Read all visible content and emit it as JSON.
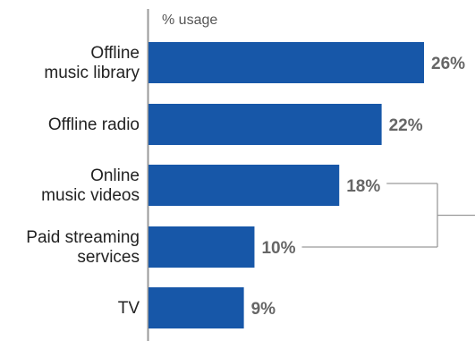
{
  "chart_data": {
    "type": "bar",
    "orientation": "horizontal",
    "unit_label": "% usage",
    "categories": [
      [
        "Offline",
        "music library"
      ],
      [
        "Offline radio"
      ],
      [
        "Online",
        "music videos"
      ],
      [
        "Paid streaming",
        "services"
      ],
      [
        "TV"
      ]
    ],
    "values": [
      26,
      22,
      18,
      10,
      9
    ],
    "value_labels": [
      "26%",
      "22%",
      "18%",
      "10%",
      "9%"
    ],
    "bracket_between": [
      2,
      3
    ],
    "bar_color": "#1757a8",
    "xlim": [
      0,
      26
    ],
    "grid": false,
    "legend": "none"
  }
}
